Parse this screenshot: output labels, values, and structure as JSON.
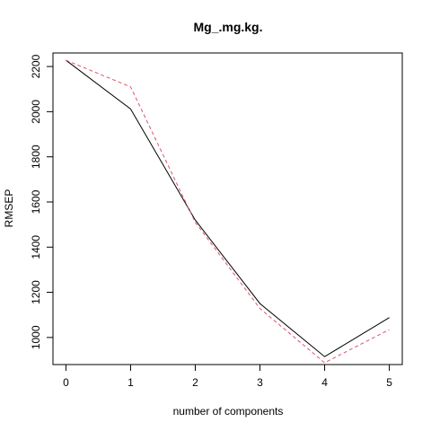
{
  "chart_data": {
    "type": "line",
    "title": "Mg_.mg.kg.",
    "xlabel": "number of components",
    "ylabel": "RMSEP",
    "x": [
      0,
      1,
      2,
      3,
      4,
      5
    ],
    "xlim": [
      -0.2,
      5.2
    ],
    "ylim": [
      880,
      2260
    ],
    "x_ticks": [
      "0",
      "1",
      "2",
      "3",
      "4",
      "5"
    ],
    "y_ticks": [
      "1000",
      "1200",
      "1400",
      "1600",
      "1800",
      "2000",
      "2200"
    ],
    "grid": false,
    "series": [
      {
        "values": [
          2228,
          2012,
          1520,
          1150,
          915,
          1088
        ],
        "color": "#000000",
        "style": "solid"
      },
      {
        "values": [
          2228,
          2110,
          1510,
          1128,
          888,
          1035
        ],
        "color": "#df536b",
        "style": "dashed"
      }
    ]
  }
}
